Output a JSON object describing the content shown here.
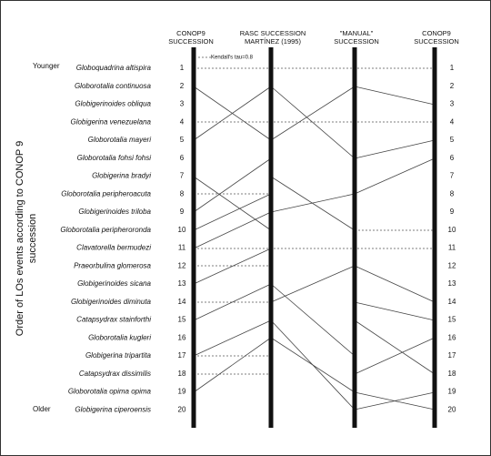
{
  "columns": [
    {
      "line1": "CONOP9",
      "line2": "SUCCESSION"
    },
    {
      "line1": "RASC SUCCESSION",
      "line2": "MARTÍNEZ (1995)"
    },
    {
      "line1": "\"MANUAL\"",
      "line2": "SUCCESSION"
    },
    {
      "line1": "CONOP9",
      "line2": "SUCCESSION"
    }
  ],
  "annotation": "Kendall's tau=0.8",
  "younger_label": "Younger",
  "older_label": "Older",
  "axis_title": {
    "line1": "Order of LOs  events according to CONOP 9",
    "line2": "succession"
  },
  "rows": [
    {
      "species": "Globoquadrina altispira",
      "rank": 1
    },
    {
      "species": "Globorotalia continuosa",
      "rank": 2
    },
    {
      "species": "Globigerinoides obliqua",
      "rank": 3
    },
    {
      "species": "Globigerina venezuelana",
      "rank": 4
    },
    {
      "species": "Globorotalia mayeri",
      "rank": 5
    },
    {
      "species": "Globorotalia fohsi fohsi",
      "rank": 6
    },
    {
      "species": "Globigerina bradyi",
      "rank": 7
    },
    {
      "species": "Globorotalia peripheroacuta",
      "rank": 8
    },
    {
      "species": "Globigerinoides triloba",
      "rank": 9
    },
    {
      "species": "Globorotalia peripheroronda",
      "rank": 10
    },
    {
      "species": "Clavatorella bermudezi",
      "rank": 11
    },
    {
      "species": "Praeorbulina glomerosa",
      "rank": 12
    },
    {
      "species": "Globigerinoides sicana",
      "rank": 13
    },
    {
      "species": "Globigerinoides diminuta",
      "rank": 14
    },
    {
      "species": "Catapsydrax stainforthi",
      "rank": 15
    },
    {
      "species": "Globorotalia kugleri",
      "rank": 16
    },
    {
      "species": "Globigerina tripartita",
      "rank": 17
    },
    {
      "species": "Catapsydrax dissimilis",
      "rank": 18
    },
    {
      "species": "Globorotalia opima opima",
      "rank": 19
    },
    {
      "species": "Globigerina ciperoensis",
      "rank": 20
    }
  ]
}
